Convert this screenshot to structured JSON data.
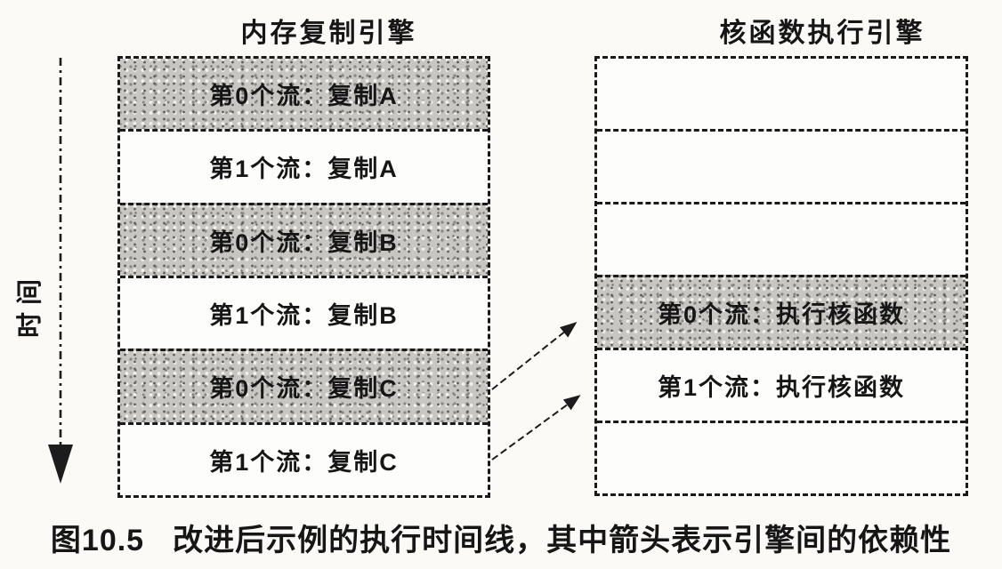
{
  "figure": {
    "caption_prefix": "图10.5",
    "caption_text": "改进后示例的执行时间线，其中箭头表示引擎间的依赖性",
    "time_axis_label": "时间"
  },
  "engines": [
    {
      "title": "内存复制引擎",
      "rows": [
        {
          "label": "第0个流：复制A",
          "shaded": true
        },
        {
          "label": "第1个流：复制A",
          "shaded": false
        },
        {
          "label": "第0个流：复制B",
          "shaded": true
        },
        {
          "label": "第1个流：复制B",
          "shaded": false
        },
        {
          "label": "第0个流：复制C",
          "shaded": true
        },
        {
          "label": "第1个流：复制C",
          "shaded": false
        }
      ]
    },
    {
      "title": "核函数执行引擎",
      "rows": [
        {
          "label": "",
          "shaded": false
        },
        {
          "label": "",
          "shaded": false
        },
        {
          "label": "",
          "shaded": false
        },
        {
          "label": "第0个流：执行核函数",
          "shaded": true
        },
        {
          "label": "第1个流：执行核函数",
          "shaded": false
        },
        {
          "label": "",
          "shaded": false
        }
      ]
    }
  ],
  "dependencies": [
    {
      "from": "第0个流：复制C",
      "to": "第0个流：执行核函数"
    },
    {
      "from": "第1个流：复制C",
      "to": "第1个流：执行核函数"
    }
  ],
  "colors": {
    "ink": "#1c1c1c",
    "shade_fill": "#c8c6c2",
    "page": "#fbfaf7"
  }
}
